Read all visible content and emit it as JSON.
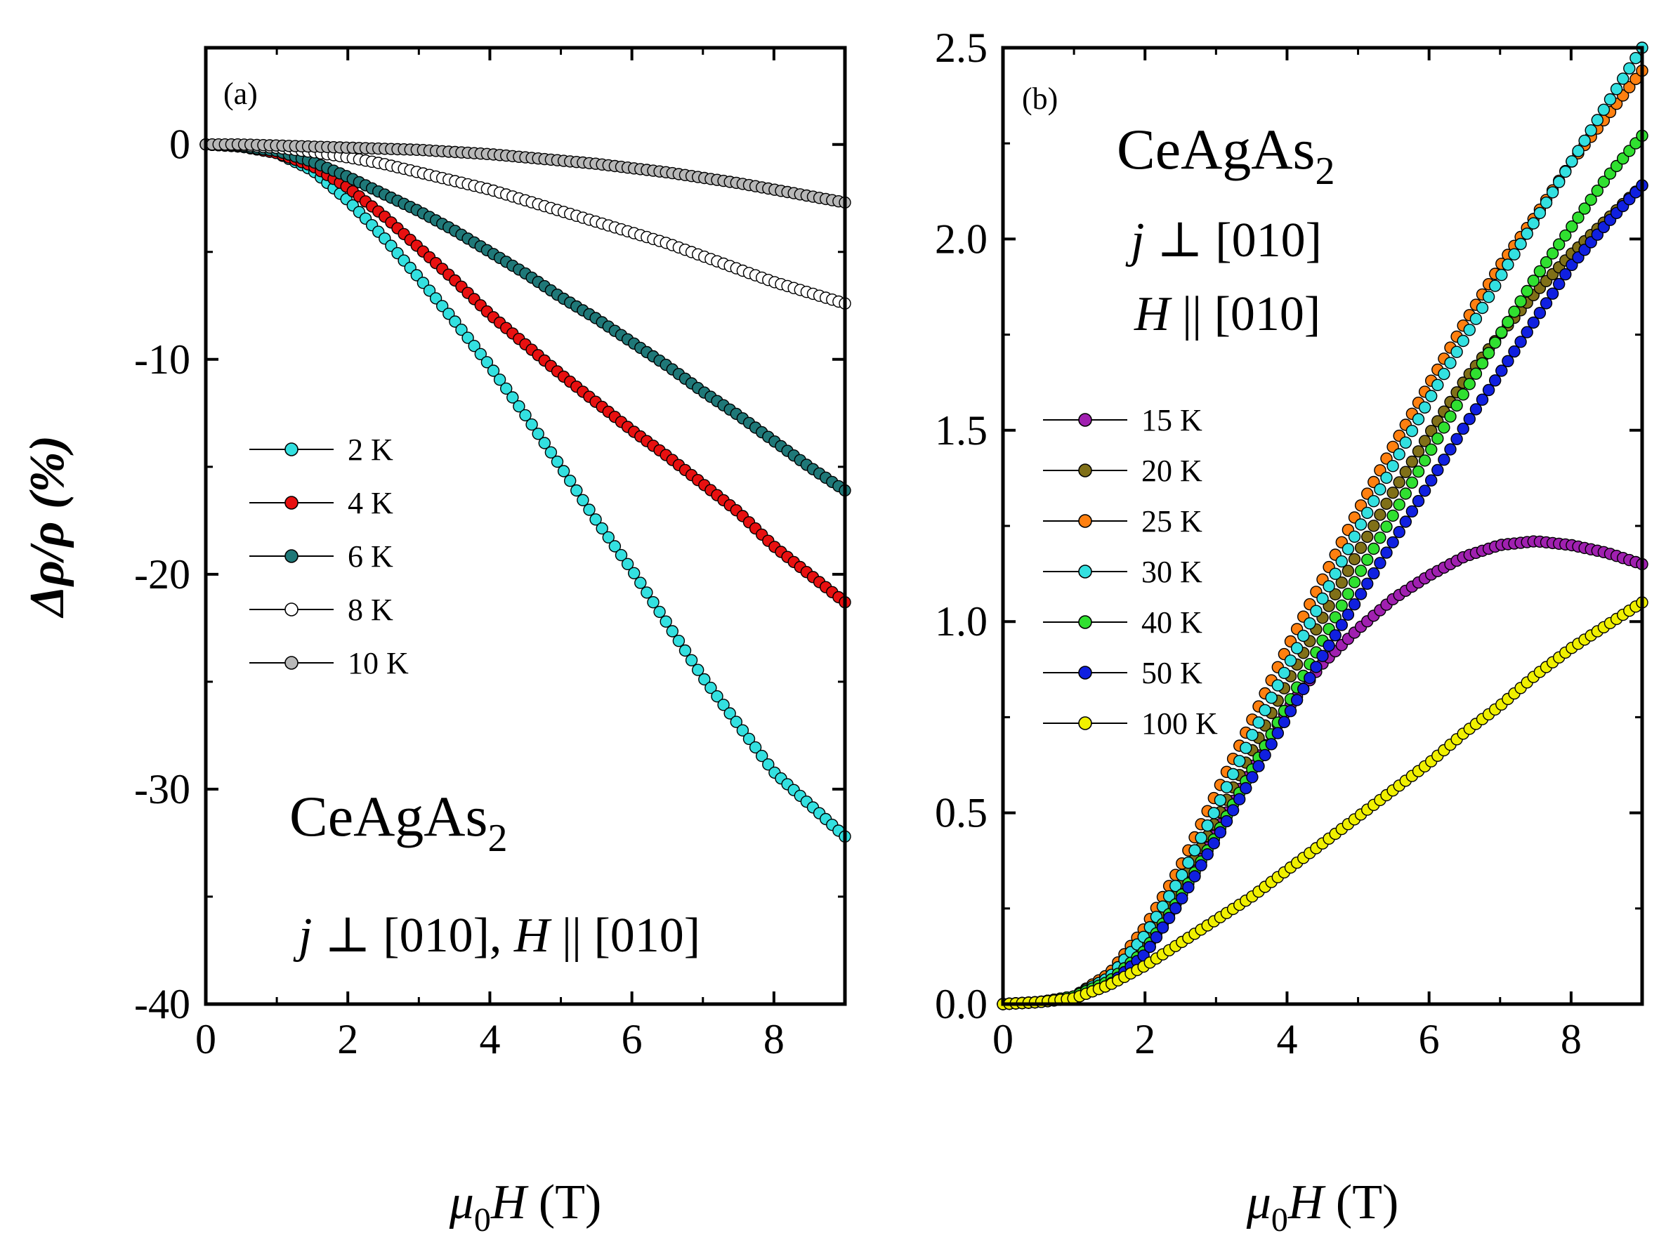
{
  "figure": {
    "x_axis_title_main": "μ",
    "x_axis_title_sub": "0",
    "x_axis_title_rest": "H",
    "x_axis_title_unit": " (T)",
    "y_axis_title_a": "Δρ/ρ (%)"
  },
  "chart_data": [
    {
      "type": "scatter",
      "panel_label": "(a)",
      "compound": "CeAgAs",
      "compound_subscript": "2",
      "condition": "j ⊥ [010], H || [010]",
      "condition_parts": {
        "j": "j",
        "perp": " ⊥ [010], ",
        "H": "H",
        "par": " || [010]"
      },
      "xlabel": "μ0H (T)",
      "ylabel": "Δρ/ρ (%)",
      "xlim": [
        0,
        9
      ],
      "ylim": [
        -40,
        4.5
      ],
      "xticks": [
        0,
        2,
        4,
        6,
        8
      ],
      "yticks": [
        0,
        -10,
        -20,
        -30,
        -40
      ],
      "legend_position": "center-left",
      "series": [
        {
          "name": "2 K",
          "color": "#33e0e0",
          "x": [
            0,
            0.5,
            1,
            1.5,
            2,
            2.5,
            3,
            3.5,
            4,
            4.5,
            5,
            5.5,
            6,
            6.5,
            7,
            7.5,
            8,
            8.5,
            9
          ],
          "values": [
            0,
            -0.1,
            -0.4,
            -1.2,
            -2.6,
            -4.3,
            -6.2,
            -8.2,
            -10.3,
            -12.6,
            -15.0,
            -17.5,
            -19.8,
            -22.3,
            -24.8,
            -27.0,
            -29.2,
            -30.7,
            -32.2
          ]
        },
        {
          "name": "4 K",
          "color": "#e81010",
          "x": [
            0,
            0.5,
            1,
            1.5,
            2,
            2.5,
            3,
            3.5,
            4,
            4.5,
            5,
            5.5,
            6,
            6.5,
            7,
            7.5,
            8,
            8.5,
            9
          ],
          "values": [
            0,
            -0.1,
            -0.4,
            -1.0,
            -2.0,
            -3.3,
            -4.8,
            -6.3,
            -7.9,
            -9.3,
            -10.7,
            -12.0,
            -13.3,
            -14.5,
            -15.8,
            -17.1,
            -18.7,
            -20.0,
            -21.3
          ]
        },
        {
          "name": "6 K",
          "color": "#1f7878",
          "x": [
            0,
            0.5,
            1,
            1.5,
            2,
            2.5,
            3,
            3.5,
            4,
            4.5,
            5,
            5.5,
            6,
            6.5,
            7,
            7.5,
            8,
            8.5,
            9
          ],
          "values": [
            0,
            -0.1,
            -0.3,
            -0.8,
            -1.5,
            -2.3,
            -3.1,
            -4.0,
            -5.0,
            -6.0,
            -7.1,
            -8.1,
            -9.2,
            -10.3,
            -11.5,
            -12.6,
            -13.8,
            -15.0,
            -16.1
          ]
        },
        {
          "name": "8 K",
          "color": "#ffffff",
          "x": [
            0,
            0.5,
            1,
            1.5,
            2,
            2.5,
            3,
            3.5,
            4,
            4.5,
            5,
            5.5,
            6,
            6.5,
            7,
            7.5,
            8,
            8.5,
            9
          ],
          "values": [
            0,
            -0.05,
            -0.15,
            -0.35,
            -0.6,
            -0.9,
            -1.3,
            -1.7,
            -2.1,
            -2.6,
            -3.1,
            -3.6,
            -4.1,
            -4.6,
            -5.2,
            -5.8,
            -6.4,
            -6.9,
            -7.4
          ]
        },
        {
          "name": "10 K",
          "color": "#b8b8b8",
          "x": [
            0,
            0.5,
            1,
            1.5,
            2,
            2.5,
            3,
            3.5,
            4,
            4.5,
            5,
            5.5,
            6,
            6.5,
            7,
            7.5,
            8,
            8.5,
            9
          ],
          "values": [
            0,
            0,
            -0.05,
            -0.1,
            -0.15,
            -0.2,
            -0.25,
            -0.35,
            -0.45,
            -0.6,
            -0.75,
            -0.9,
            -1.1,
            -1.3,
            -1.55,
            -1.8,
            -2.1,
            -2.4,
            -2.7
          ]
        }
      ]
    },
    {
      "type": "scatter",
      "panel_label": "(b)",
      "compound": "CeAgAs",
      "compound_subscript": "2",
      "condition_line1": "j ⊥ [010]",
      "condition_line2": "H || [010]",
      "condition_parts": {
        "j": "j",
        "perp": " ⊥ [010]",
        "H": "H",
        "par": " || [010]"
      },
      "xlabel": "μ0H (T)",
      "ylabel": "",
      "xlim": [
        0,
        9
      ],
      "ylim": [
        0,
        2.5
      ],
      "xticks": [
        0,
        2,
        4,
        6,
        8
      ],
      "yticks": [
        "0.0",
        "0.5",
        "1.0",
        "1.5",
        "2.0",
        "2.5"
      ],
      "legend_position": "center-left",
      "series": [
        {
          "name": "15 K",
          "color": "#a020b0",
          "x": [
            0,
            0.5,
            1,
            1.5,
            2,
            2.5,
            3,
            3.5,
            4,
            4.5,
            5,
            5.5,
            6,
            6.5,
            7,
            7.5,
            8,
            8.5,
            9
          ],
          "values": [
            0,
            0.005,
            0.02,
            0.06,
            0.15,
            0.28,
            0.45,
            0.62,
            0.77,
            0.89,
            0.98,
            1.06,
            1.12,
            1.17,
            1.2,
            1.21,
            1.2,
            1.18,
            1.15
          ]
        },
        {
          "name": "20 K",
          "color": "#807018",
          "x": [
            0,
            0.5,
            1,
            1.5,
            2,
            2.5,
            3,
            3.5,
            4,
            4.5,
            5,
            5.5,
            6,
            6.5,
            7,
            7.5,
            8,
            8.5,
            9
          ],
          "values": [
            0,
            0.005,
            0.02,
            0.06,
            0.16,
            0.31,
            0.48,
            0.66,
            0.84,
            1.01,
            1.18,
            1.34,
            1.49,
            1.63,
            1.75,
            1.86,
            1.96,
            2.05,
            2.14
          ]
        },
        {
          "name": "25 K",
          "color": "#ff8010",
          "x": [
            0,
            0.5,
            1,
            1.5,
            2,
            2.5,
            3,
            3.5,
            4,
            4.5,
            5,
            5.5,
            6,
            6.5,
            7,
            7.5,
            8,
            8.5,
            9
          ],
          "values": [
            0,
            0.005,
            0.02,
            0.08,
            0.2,
            0.36,
            0.55,
            0.74,
            0.93,
            1.11,
            1.29,
            1.46,
            1.62,
            1.78,
            1.93,
            2.06,
            2.2,
            2.32,
            2.44
          ]
        },
        {
          "name": "30 K",
          "color": "#33e0e0",
          "x": [
            0,
            0.5,
            1,
            1.5,
            2,
            2.5,
            3,
            3.5,
            4,
            4.5,
            5,
            5.5,
            6,
            6.5,
            7,
            7.5,
            8,
            8.5,
            9
          ],
          "values": [
            0,
            0.005,
            0.02,
            0.07,
            0.18,
            0.33,
            0.51,
            0.7,
            0.88,
            1.06,
            1.24,
            1.41,
            1.58,
            1.74,
            1.9,
            2.05,
            2.2,
            2.35,
            2.5
          ]
        },
        {
          "name": "40 K",
          "color": "#30e030",
          "x": [
            0,
            0.5,
            1,
            1.5,
            2,
            2.5,
            3,
            3.5,
            4,
            4.5,
            5,
            5.5,
            6,
            6.5,
            7,
            7.5,
            8,
            8.5,
            9
          ],
          "values": [
            0,
            0.005,
            0.02,
            0.06,
            0.14,
            0.28,
            0.44,
            0.61,
            0.78,
            0.95,
            1.12,
            1.28,
            1.44,
            1.6,
            1.75,
            1.9,
            2.03,
            2.16,
            2.27
          ]
        },
        {
          "name": "50 K",
          "color": "#1020e0",
          "x": [
            0,
            0.5,
            1,
            1.5,
            2,
            2.5,
            3,
            3.5,
            4,
            4.5,
            5,
            5.5,
            6,
            6.5,
            7,
            7.5,
            8,
            8.5,
            9
          ],
          "values": [
            0,
            0.005,
            0.015,
            0.05,
            0.13,
            0.27,
            0.43,
            0.59,
            0.75,
            0.91,
            1.06,
            1.21,
            1.36,
            1.51,
            1.65,
            1.79,
            1.93,
            2.04,
            2.14
          ]
        },
        {
          "name": "100 K",
          "color": "#f0f000",
          "x": [
            0,
            0.5,
            1,
            1.5,
            2,
            2.5,
            3,
            3.5,
            4,
            4.5,
            5,
            5.5,
            6,
            6.5,
            7,
            7.5,
            8,
            8.5,
            9
          ],
          "values": [
            0,
            0.005,
            0.015,
            0.05,
            0.1,
            0.16,
            0.22,
            0.28,
            0.35,
            0.42,
            0.49,
            0.56,
            0.63,
            0.71,
            0.78,
            0.86,
            0.93,
            0.99,
            1.05
          ]
        }
      ]
    }
  ]
}
